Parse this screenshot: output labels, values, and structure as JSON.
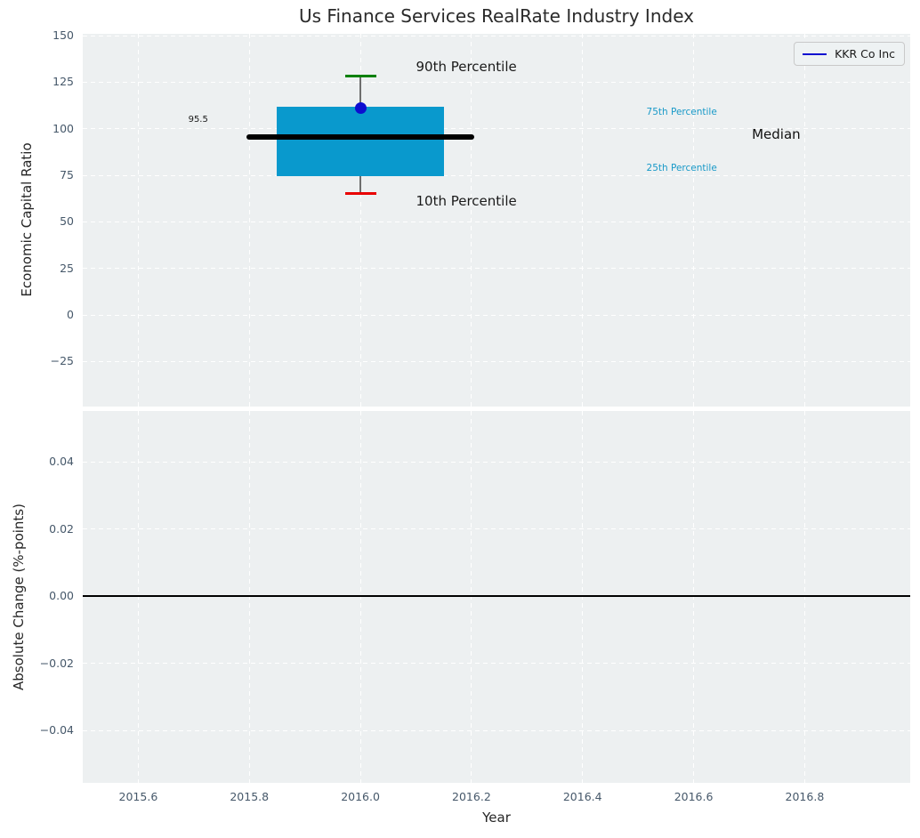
{
  "figure": {
    "title": "Us Finance Services RealRate Industry Index",
    "background": "#ffffff",
    "axes_background": "#edf0f1",
    "grid_color": "#ffffff",
    "tick_label_color": "#46586a",
    "text_color": "#262626"
  },
  "legend": {
    "label": "KKR Co Inc",
    "line_color": "#0d0dd0",
    "position": "upper right"
  },
  "chart_data": [
    {
      "type": "box",
      "title": "Us Finance Services RealRate Industry Index",
      "ylabel": "Economic Capital Ratio",
      "xlabel": "",
      "xlim": [
        2015.5,
        2016.99
      ],
      "ylim": [
        -49.2,
        151
      ],
      "grid": true,
      "x_ticks": [
        2015.6,
        2015.8,
        2016.0,
        2016.2,
        2016.4,
        2016.6,
        2016.8
      ],
      "y_ticks": [
        150,
        125,
        100,
        75,
        50,
        25,
        0,
        -25
      ],
      "y_tick_labels": [
        "150",
        "125",
        "100",
        "75",
        "50",
        "25",
        "0",
        "−25"
      ],
      "box": {
        "x": 2016,
        "p90": 128.3,
        "p75": 111.7,
        "median": 95.5,
        "p25": 74.4,
        "p10": 65.3,
        "median_label": "95.5",
        "box_halfwidth": 0.15,
        "median_halfwidth": 0.205,
        "cap_halfwidth": 0.028,
        "colors": {
          "box": "#0999cd",
          "median": "#000000",
          "whisker": "#6e6e6e",
          "p90_cap": "#008000",
          "p10_cap": "#e80000"
        }
      },
      "series": [
        {
          "name": "KKR Co Inc",
          "x": [
            2016
          ],
          "y": [
            111.3
          ],
          "color": "#0d0dd0",
          "marker": "circle"
        }
      ],
      "annotations": [
        {
          "text": "90th Percentile",
          "x": 2016.1,
          "y": 132.3,
          "size": 15,
          "color": "#1a1a1a"
        },
        {
          "text": "10th Percentile",
          "x": 2016.1,
          "y": 60.5,
          "size": 15,
          "color": "#1a1a1a"
        },
        {
          "text": "95.5",
          "x": 2015.69,
          "y": 104.3,
          "size": 10,
          "color": "#1a1a1a"
        },
        {
          "text": "75th Percentile",
          "x": 2016.515,
          "y": 108.0,
          "size": 10.5,
          "color": "#1899c8"
        },
        {
          "text": "25th Percentile",
          "x": 2016.515,
          "y": 78.0,
          "size": 10.5,
          "color": "#1899c8"
        },
        {
          "text": "Median",
          "x": 2016.705,
          "y": 96.2,
          "size": 15,
          "color": "#111111"
        }
      ]
    },
    {
      "type": "line",
      "ylabel": "Absolute Change (%-points)",
      "xlabel": "Year",
      "xlim": [
        2015.5,
        2016.99
      ],
      "ylim": [
        -0.0556,
        0.0551
      ],
      "grid": true,
      "x_ticks": [
        2015.6,
        2015.8,
        2016.0,
        2016.2,
        2016.4,
        2016.6,
        2016.8
      ],
      "x_tick_labels": [
        "2015.6",
        "2015.8",
        "2016.0",
        "2016.2",
        "2016.4",
        "2016.6",
        "2016.8"
      ],
      "y_ticks": [
        0.04,
        0.02,
        0,
        -0.02,
        -0.04
      ],
      "y_tick_labels": [
        "0.04",
        "0.02",
        "0.00",
        "−0.02",
        "−0.04"
      ],
      "zero_line": {
        "y": 0,
        "color": "#000000"
      }
    }
  ]
}
